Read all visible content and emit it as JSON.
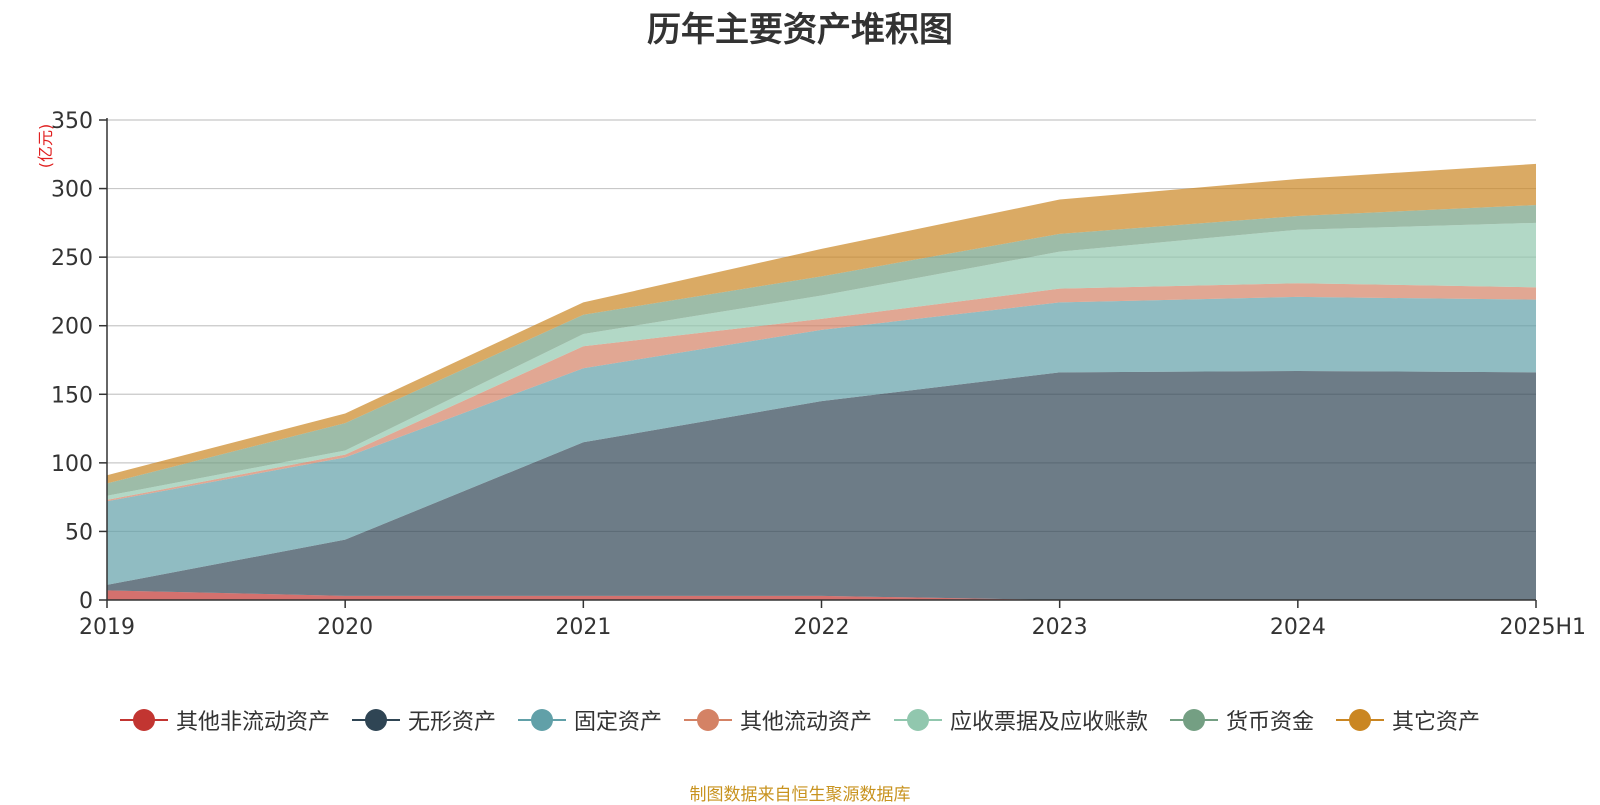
{
  "chart_data": {
    "type": "area",
    "title": "历年主要资产堆积图",
    "ylabel": "(亿元)",
    "xlabel": "",
    "ylim": [
      0,
      350
    ],
    "yticks": [
      "0",
      "50",
      "100",
      "150",
      "200",
      "250",
      "300",
      "350"
    ],
    "categories": [
      "2019",
      "2020",
      "2021",
      "2022",
      "2023",
      "2024",
      "2025H1"
    ],
    "stacked": true,
    "grid": true,
    "legend_position": "bottom",
    "series": [
      {
        "name": "其他非流动资产",
        "color": "#c23531",
        "values": [
          7,
          3,
          3,
          3,
          0,
          0,
          0
        ]
      },
      {
        "name": "无形资产",
        "color": "#2f4554",
        "values": [
          4,
          41,
          112,
          142,
          166,
          167,
          166
        ]
      },
      {
        "name": "固定资产",
        "color": "#61a0a8",
        "values": [
          61,
          60,
          54,
          52,
          51,
          54,
          53
        ]
      },
      {
        "name": "其他流动资产",
        "color": "#d48265",
        "values": [
          1,
          2,
          16,
          8,
          10,
          10,
          9
        ]
      },
      {
        "name": "应收票据及应收账款",
        "color": "#91c7ae",
        "values": [
          3,
          3,
          9,
          17,
          27,
          39,
          47
        ]
      },
      {
        "name": "货币资金",
        "color": "#749f83",
        "values": [
          9,
          20,
          14,
          14,
          13,
          10,
          13
        ]
      },
      {
        "name": "其它资产",
        "color": "#ca8622",
        "values": [
          6,
          7,
          9,
          20,
          25,
          27,
          30
        ]
      }
    ]
  },
  "source_note": "制图数据来自恒生聚源数据库"
}
